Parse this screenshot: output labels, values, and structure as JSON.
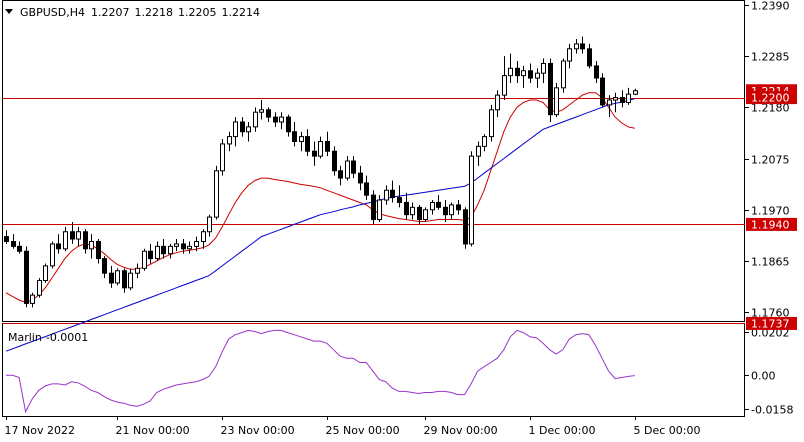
{
  "header": {
    "symbol": "GBPUSD,H4",
    "open": "1.2207",
    "high": "1.2218",
    "low": "1.2205",
    "close": "1.2214"
  },
  "indicator": {
    "name": "Marlin",
    "value": "-0.0001"
  },
  "colors": {
    "bull_candle": "#ffffff",
    "bear_candle": "#000000",
    "candle_outline": "#000000",
    "level_line": "#cc0000",
    "price_tag": "#cc0000",
    "fast_ma": "#cc0000",
    "slow_ma": "#0000cc",
    "oscillator": "#9933cc",
    "grid_frame": "#000000"
  },
  "chart_data": [
    {
      "type": "candlestick",
      "title": "GBPUSD,H4",
      "ylim": [
        1.1742,
        1.2398
      ],
      "y_ticks": [
        "1.2390",
        "1.2285",
        "1.2180",
        "1.2075",
        "1.1970",
        "1.1865",
        "1.1760"
      ],
      "x_ticks": [
        "17 Nov 2022",
        "21 Nov 00:00",
        "23 Nov 00:00",
        "25 Nov 00:00",
        "29 Nov 00:00",
        "1 Dec 00:00",
        "5 Dec 00:00"
      ],
      "x_tick_index": [
        0,
        17,
        33,
        49,
        64,
        80,
        96
      ],
      "horizontal_levels": [
        {
          "value": 1.22,
          "label": "1.2200"
        },
        {
          "value": 1.194,
          "label": "1.1940"
        },
        {
          "value": 1.1737,
          "label": "1.1737"
        }
      ],
      "current_price_tag": "1.2214",
      "ohlc": [
        [
          1.1915,
          1.1928,
          1.19,
          1.1905
        ],
        [
          1.1905,
          1.192,
          1.189,
          1.1895
        ],
        [
          1.1895,
          1.1905,
          1.188,
          1.1885
        ],
        [
          1.1885,
          1.1895,
          1.177,
          1.1778
        ],
        [
          1.1778,
          1.18,
          1.177,
          1.1795
        ],
        [
          1.1795,
          1.183,
          1.179,
          1.1825
        ],
        [
          1.1825,
          1.186,
          1.182,
          1.1855
        ],
        [
          1.1855,
          1.1905,
          1.185,
          1.19
        ],
        [
          1.19,
          1.192,
          1.188,
          1.189
        ],
        [
          1.189,
          1.1935,
          1.1885,
          1.1925
        ],
        [
          1.1925,
          1.1945,
          1.19,
          1.191
        ],
        [
          1.191,
          1.1935,
          1.1895,
          1.1925
        ],
        [
          1.1925,
          1.193,
          1.188,
          1.189
        ],
        [
          1.189,
          1.192,
          1.187,
          1.1905
        ],
        [
          1.1905,
          1.191,
          1.186,
          1.187
        ],
        [
          1.187,
          1.1875,
          1.183,
          1.184
        ],
        [
          1.184,
          1.1855,
          1.181,
          1.182
        ],
        [
          1.182,
          1.185,
          1.1815,
          1.1845
        ],
        [
          1.1845,
          1.185,
          1.18,
          1.181
        ],
        [
          1.181,
          1.185,
          1.1805,
          1.184
        ],
        [
          1.184,
          1.186,
          1.183,
          1.185
        ],
        [
          1.185,
          1.189,
          1.1845,
          1.1885
        ],
        [
          1.1885,
          1.19,
          1.186,
          1.187
        ],
        [
          1.187,
          1.1905,
          1.1865,
          1.1895
        ],
        [
          1.1895,
          1.191,
          1.187,
          1.188
        ],
        [
          1.188,
          1.19,
          1.187,
          1.1895
        ],
        [
          1.1895,
          1.191,
          1.1885,
          1.19
        ],
        [
          1.19,
          1.191,
          1.188,
          1.189
        ],
        [
          1.189,
          1.1905,
          1.188,
          1.1895
        ],
        [
          1.1895,
          1.1915,
          1.1885,
          1.1905
        ],
        [
          1.1905,
          1.193,
          1.189,
          1.1925
        ],
        [
          1.1925,
          1.196,
          1.1915,
          1.1955
        ],
        [
          1.1955,
          1.206,
          1.195,
          1.205
        ],
        [
          1.205,
          1.2115,
          1.204,
          1.2105
        ],
        [
          1.2105,
          1.213,
          1.209,
          1.212
        ],
        [
          1.212,
          1.216,
          1.21,
          1.215
        ],
        [
          1.215,
          1.216,
          1.212,
          1.213
        ],
        [
          1.213,
          1.215,
          1.211,
          1.214
        ],
        [
          1.214,
          1.218,
          1.213,
          1.217
        ],
        [
          1.217,
          1.2195,
          1.2155,
          1.2175
        ],
        [
          1.2175,
          1.218,
          1.215,
          1.216
        ],
        [
          1.216,
          1.217,
          1.214,
          1.215
        ],
        [
          1.215,
          1.217,
          1.2135,
          1.216
        ],
        [
          1.216,
          1.2165,
          1.212,
          1.213
        ],
        [
          1.213,
          1.215,
          1.21,
          1.211
        ],
        [
          1.211,
          1.213,
          1.209,
          1.212
        ],
        [
          1.212,
          1.2135,
          1.208,
          1.209
        ],
        [
          1.209,
          1.211,
          1.206,
          1.208
        ],
        [
          1.208,
          1.212,
          1.2075,
          1.211
        ],
        [
          1.211,
          1.213,
          1.208,
          1.209
        ],
        [
          1.209,
          1.21,
          1.204,
          1.205
        ],
        [
          1.205,
          1.206,
          1.202,
          1.2035
        ],
        [
          1.2035,
          1.208,
          1.203,
          1.207
        ],
        [
          1.207,
          1.208,
          1.2035,
          1.2045
        ],
        [
          1.2045,
          1.206,
          1.201,
          1.2025
        ],
        [
          1.2025,
          1.204,
          1.199,
          1.2
        ],
        [
          1.2,
          1.201,
          1.194,
          1.195
        ],
        [
          1.195,
          1.2,
          1.1945,
          1.199
        ],
        [
          1.199,
          1.202,
          1.198,
          1.201
        ],
        [
          1.201,
          1.203,
          1.1985,
          1.1995
        ],
        [
          1.1995,
          1.202,
          1.1975,
          1.1985
        ],
        [
          1.1985,
          1.2005,
          1.195,
          1.196
        ],
        [
          1.196,
          1.1985,
          1.195,
          1.1975
        ],
        [
          1.1975,
          1.198,
          1.194,
          1.195
        ],
        [
          1.195,
          1.1975,
          1.1945,
          1.197
        ],
        [
          1.197,
          1.199,
          1.196,
          1.1985
        ],
        [
          1.1985,
          1.2,
          1.197,
          1.1975
        ],
        [
          1.1975,
          1.199,
          1.1945,
          1.196
        ],
        [
          1.196,
          1.1985,
          1.195,
          1.198
        ],
        [
          1.198,
          1.199,
          1.196,
          1.197
        ],
        [
          1.197,
          1.1975,
          1.189,
          1.19
        ],
        [
          1.19,
          1.209,
          1.1895,
          1.208
        ],
        [
          1.208,
          1.211,
          1.206,
          1.21
        ],
        [
          1.21,
          1.2125,
          1.209,
          1.212
        ],
        [
          1.212,
          1.2185,
          1.211,
          1.2175
        ],
        [
          1.2175,
          1.2215,
          1.216,
          1.2205
        ],
        [
          1.2205,
          1.2285,
          1.2195,
          1.2245
        ],
        [
          1.2245,
          1.229,
          1.223,
          1.226
        ],
        [
          1.226,
          1.2275,
          1.223,
          1.2245
        ],
        [
          1.2245,
          1.2265,
          1.222,
          1.2255
        ],
        [
          1.2255,
          1.227,
          1.223,
          1.224
        ],
        [
          1.224,
          1.226,
          1.222,
          1.225
        ],
        [
          1.225,
          1.228,
          1.223,
          1.227
        ],
        [
          1.227,
          1.228,
          1.215,
          1.2165
        ],
        [
          1.2165,
          1.223,
          1.216,
          1.222
        ],
        [
          1.222,
          1.228,
          1.221,
          1.2275
        ],
        [
          1.2275,
          1.231,
          1.226,
          1.23
        ],
        [
          1.23,
          1.232,
          1.229,
          1.231
        ],
        [
          1.231,
          1.2325,
          1.229,
          1.23
        ],
        [
          1.23,
          1.231,
          1.226,
          1.2265
        ],
        [
          1.2265,
          1.2275,
          1.223,
          1.224
        ],
        [
          1.224,
          1.225,
          1.218,
          1.2185
        ],
        [
          1.2185,
          1.2205,
          1.216,
          1.2195
        ],
        [
          1.2195,
          1.221,
          1.217,
          1.22
        ],
        [
          1.22,
          1.2215,
          1.218,
          1.219
        ],
        [
          1.219,
          1.222,
          1.2185,
          1.2207
        ],
        [
          1.2207,
          1.2218,
          1.2205,
          1.2214
        ]
      ],
      "fast_ma": [
        1.18,
        1.1792,
        1.1785,
        1.178,
        1.1785,
        1.1795,
        1.181,
        1.183,
        1.185,
        1.187,
        1.1885,
        1.1895,
        1.19,
        1.1898,
        1.189,
        1.188,
        1.1868,
        1.1858,
        1.1852,
        1.1848,
        1.1848,
        1.1852,
        1.1858,
        1.1865,
        1.1872,
        1.1878,
        1.1882,
        1.1885,
        1.1887,
        1.1889,
        1.1892,
        1.1898,
        1.1912,
        1.1935,
        1.196,
        1.1985,
        1.2005,
        1.202,
        1.203,
        1.2035,
        1.2035,
        1.2032,
        1.203,
        1.2028,
        1.2025,
        1.2022,
        1.202,
        1.2018,
        1.2015,
        1.201,
        1.2005,
        1.2,
        1.1995,
        1.199,
        1.1985,
        1.198,
        1.197,
        1.1962,
        1.1958,
        1.1955,
        1.1952,
        1.195,
        1.1948,
        1.1946,
        1.1946,
        1.1948,
        1.195,
        1.195,
        1.195,
        1.195,
        1.1948,
        1.1955,
        1.198,
        1.201,
        1.205,
        1.209,
        1.213,
        1.216,
        1.218,
        1.219,
        1.2195,
        1.2195,
        1.219,
        1.2175,
        1.217,
        1.2175,
        1.2185,
        1.2195,
        1.2205,
        1.221,
        1.221,
        1.22,
        1.218,
        1.216,
        1.2148,
        1.214,
        1.2137
      ],
      "slow_ma": [
        1.168,
        1.1685,
        1.169,
        1.1695,
        1.17,
        1.1705,
        1.171,
        1.1715,
        1.172,
        1.1725,
        1.173,
        1.1735,
        1.174,
        1.1745,
        1.175,
        1.1755,
        1.176,
        1.1765,
        1.177,
        1.1775,
        1.178,
        1.1785,
        1.179,
        1.1795,
        1.18,
        1.1805,
        1.181,
        1.1815,
        1.182,
        1.1825,
        1.183,
        1.1835,
        1.1845,
        1.1855,
        1.1865,
        1.1875,
        1.1885,
        1.1895,
        1.1905,
        1.1915,
        1.192,
        1.1925,
        1.193,
        1.1935,
        1.194,
        1.1945,
        1.195,
        1.1955,
        1.196,
        1.1963,
        1.1966,
        1.197,
        1.1973,
        1.1976,
        1.198,
        1.1983,
        1.1986,
        1.199,
        1.1993,
        1.1996,
        1.1998,
        1.2,
        1.2002,
        1.2004,
        1.2006,
        1.2008,
        1.201,
        1.2012,
        1.2014,
        1.2016,
        1.2018,
        1.2025,
        1.2035,
        1.2045,
        1.2055,
        1.2065,
        1.2075,
        1.2085,
        1.2095,
        1.2105,
        1.2115,
        1.2125,
        1.2135,
        1.214,
        1.2145,
        1.215,
        1.2155,
        1.216,
        1.2165,
        1.217,
        1.2175,
        1.218,
        1.2185,
        1.2188,
        1.2191,
        1.2194,
        1.2198
      ]
    },
    {
      "type": "line",
      "title": "Marlin -0.0001",
      "ylim": [
        -0.019,
        0.024
      ],
      "y_ticks": [
        "0.0202",
        "0.00",
        "-0.0158"
      ],
      "series": [
        {
          "name": "Marlin",
          "values": [
            0.0,
            0.0,
            -0.001,
            -0.017,
            -0.011,
            -0.007,
            -0.005,
            -0.004,
            -0.004,
            -0.0045,
            -0.003,
            -0.0035,
            -0.005,
            -0.007,
            -0.008,
            -0.01,
            -0.0115,
            -0.0125,
            -0.013,
            -0.014,
            -0.0145,
            -0.0135,
            -0.012,
            -0.008,
            -0.0065,
            -0.0055,
            -0.0045,
            -0.004,
            -0.0035,
            -0.003,
            -0.002,
            -0.0005,
            0.004,
            0.011,
            0.017,
            0.019,
            0.02,
            0.021,
            0.0205,
            0.0195,
            0.0205,
            0.021,
            0.021,
            0.02,
            0.019,
            0.018,
            0.017,
            0.016,
            0.016,
            0.015,
            0.012,
            0.009,
            0.008,
            0.008,
            0.006,
            0.006,
            0.002,
            -0.002,
            -0.003,
            -0.006,
            -0.0075,
            -0.0075,
            -0.008,
            -0.0085,
            -0.008,
            -0.008,
            -0.0075,
            -0.0075,
            -0.008,
            -0.009,
            -0.009,
            -0.004,
            0.002,
            0.004,
            0.006,
            0.008,
            0.012,
            0.018,
            0.021,
            0.02,
            0.018,
            0.0175,
            0.015,
            0.012,
            0.01,
            0.012,
            0.017,
            0.019,
            0.0195,
            0.019,
            0.014,
            0.008,
            0.002,
            -0.0015,
            -0.001,
            -0.0005,
            -0.0001
          ]
        }
      ]
    }
  ]
}
